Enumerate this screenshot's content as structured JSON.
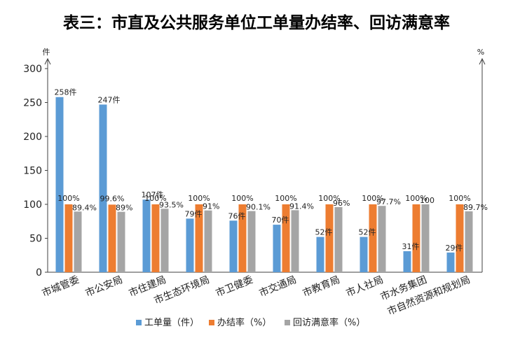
{
  "chart_data": {
    "type": "bar",
    "title": "表三：市直及公共服务单位工单量办结率、回访满意率",
    "y_unit_left": "件",
    "y_unit_right": "%",
    "ylim": [
      0,
      300
    ],
    "yticks": [
      0,
      50,
      100,
      150,
      200,
      250,
      300
    ],
    "categories": [
      "市城管委",
      "市公安局",
      "市住建局",
      "市生态环境局",
      "市卫健委",
      "市交通局",
      "市教育局",
      "市人社局",
      "市水务集团",
      "市自然资源和规划局"
    ],
    "series": [
      {
        "name": "工单量（件）",
        "color": "#5b9bd5",
        "values": [
          258,
          247,
          107,
          79,
          76,
          70,
          52,
          52,
          31,
          29
        ],
        "labels": [
          "258件",
          "247件",
          "107件",
          "79件",
          "76件",
          "70件",
          "52件",
          "52件",
          "31件",
          "29件"
        ]
      },
      {
        "name": "办结率（%）",
        "color": "#ed7d31",
        "values": [
          100,
          99.6,
          100,
          100,
          100,
          100,
          100,
          100,
          100,
          100
        ],
        "labels": [
          "100%",
          "99.6%",
          "100%",
          "100%",
          "100%",
          "100%",
          "100%",
          "100%",
          "100%",
          "100%"
        ]
      },
      {
        "name": "回访满意率（%）",
        "color": "#a5a5a5",
        "values": [
          89.4,
          89,
          93.5,
          91,
          90.1,
          91.4,
          96,
          97.7,
          100,
          89.7
        ],
        "labels": [
          "89.4%",
          "89%",
          "93.5%",
          "91%",
          "90.1%",
          "91.4%",
          "96%",
          "97.7%",
          "100",
          "89.7%"
        ]
      }
    ],
    "legend_position": "bottom",
    "grid": false
  }
}
